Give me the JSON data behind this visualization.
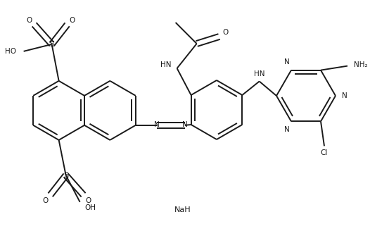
{
  "bg": "#ffffff",
  "lc": "#1a1a1a",
  "lw": 1.4,
  "fs": 7.5,
  "b": 0.42,
  "fig_w": 5.26,
  "fig_h": 3.28,
  "dpi": 100
}
